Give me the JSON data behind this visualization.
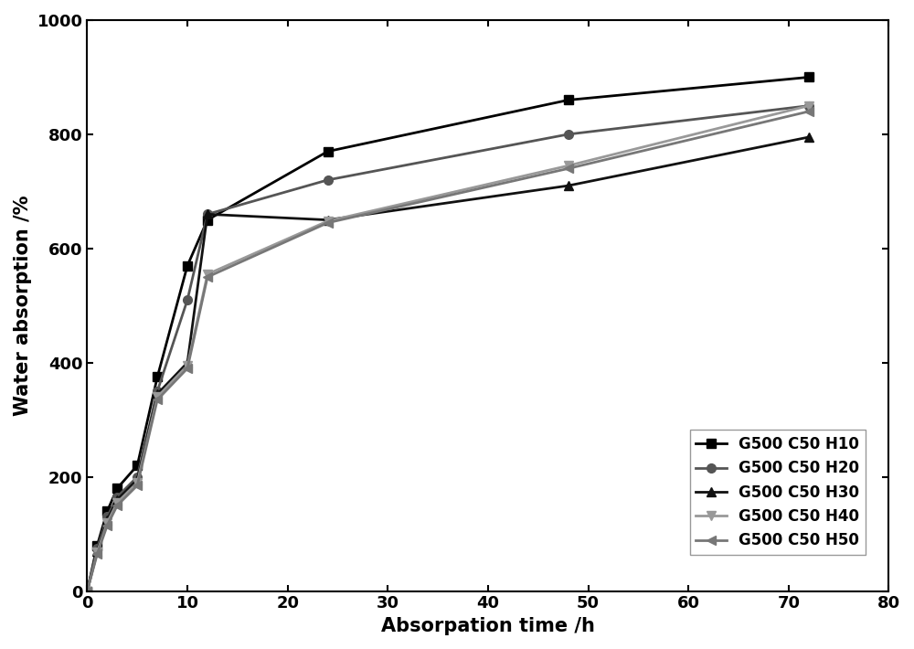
{
  "series": [
    {
      "label": "G500 C50 H10",
      "color": "#000000",
      "marker": "s",
      "linewidth": 2.0,
      "markersize": 7,
      "x": [
        0,
        1,
        2,
        3,
        5,
        7,
        10,
        12,
        24,
        48,
        72
      ],
      "y": [
        0,
        80,
        140,
        180,
        220,
        375,
        570,
        650,
        770,
        860,
        900
      ]
    },
    {
      "label": "G500 C50 H20",
      "color": "#555555",
      "marker": "o",
      "linewidth": 2.0,
      "markersize": 7,
      "x": [
        0,
        1,
        2,
        3,
        5,
        7,
        10,
        12,
        24,
        48,
        72
      ],
      "y": [
        0,
        75,
        130,
        165,
        200,
        350,
        510,
        660,
        720,
        800,
        850
      ]
    },
    {
      "label": "G500 C50 H30",
      "color": "#111111",
      "marker": "^",
      "linewidth": 2.0,
      "markersize": 7,
      "x": [
        0,
        1,
        2,
        3,
        5,
        7,
        10,
        12,
        24,
        48,
        72
      ],
      "y": [
        0,
        70,
        125,
        160,
        195,
        345,
        400,
        660,
        650,
        710,
        795
      ]
    },
    {
      "label": "G500 C50 H40",
      "color": "#999999",
      "marker": "v",
      "linewidth": 2.0,
      "markersize": 7,
      "x": [
        0,
        1,
        2,
        3,
        5,
        7,
        10,
        12,
        24,
        48,
        72
      ],
      "y": [
        0,
        68,
        120,
        155,
        190,
        340,
        395,
        555,
        648,
        745,
        850
      ]
    },
    {
      "label": "G500 C50 H50",
      "color": "#777777",
      "marker": "<",
      "linewidth": 2.0,
      "markersize": 7,
      "x": [
        0,
        1,
        2,
        3,
        5,
        7,
        10,
        12,
        24,
        48,
        72
      ],
      "y": [
        0,
        65,
        115,
        150,
        185,
        335,
        390,
        550,
        645,
        740,
        840
      ]
    }
  ],
  "xlabel": "Absorpation time /h",
  "ylabel": "Water absorption /%",
  "xlim": [
    0,
    80
  ],
  "ylim": [
    0,
    1000
  ],
  "xticks": [
    0,
    10,
    20,
    30,
    40,
    50,
    60,
    70,
    80
  ],
  "yticks": [
    0,
    200,
    400,
    600,
    800,
    1000
  ],
  "fontsize_label": 15,
  "fontsize_tick": 13,
  "fontsize_legend": 12,
  "figure_bg": "#ffffff",
  "axes_bg": "#ffffff"
}
